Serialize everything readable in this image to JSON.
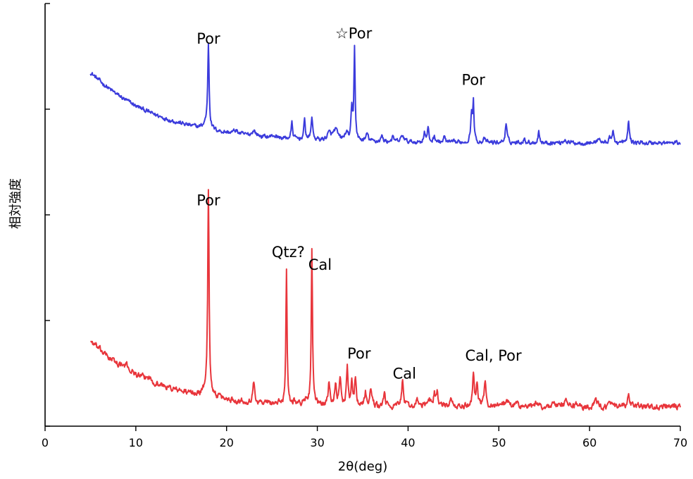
{
  "chart_data": {
    "type": "line",
    "title": "",
    "xlabel": "2θ(deg)",
    "ylabel": "相対強度",
    "xlim": [
      0,
      70
    ],
    "xticks": [
      0,
      10,
      20,
      30,
      40,
      50,
      60,
      70
    ],
    "ylim": [
      0,
      400
    ],
    "y_tick_labels_shown": false,
    "grid": false,
    "legend": "none",
    "series": [
      {
        "color": "#3b3bdc",
        "baseline": 268,
        "background": {
          "start": 5,
          "amplitude": 67,
          "decay": 7.8
        },
        "noise": 1.6,
        "peaks": [
          [
            18.0,
            77,
            0.09
          ],
          [
            17.8,
            6,
            0.35
          ],
          [
            21.0,
            3,
            0.3
          ],
          [
            23.0,
            5,
            0.25
          ],
          [
            25.2,
            2,
            0.3
          ],
          [
            27.2,
            15,
            0.1
          ],
          [
            28.6,
            18,
            0.1
          ],
          [
            29.4,
            22,
            0.1
          ],
          [
            31.3,
            6,
            0.25
          ],
          [
            32.0,
            10,
            0.3
          ],
          [
            33.2,
            7,
            0.2
          ],
          [
            33.8,
            28,
            0.1
          ],
          [
            34.1,
            88,
            0.08
          ],
          [
            35.5,
            7,
            0.15
          ],
          [
            37.1,
            5,
            0.15
          ],
          [
            38.3,
            4,
            0.15
          ],
          [
            39.4,
            6,
            0.2
          ],
          [
            41.8,
            10,
            0.1
          ],
          [
            42.2,
            13,
            0.1
          ],
          [
            42.9,
            6,
            0.12
          ],
          [
            44.0,
            5,
            0.12
          ],
          [
            47.0,
            26,
            0.12
          ],
          [
            47.2,
            34,
            0.08
          ],
          [
            48.4,
            3,
            0.15
          ],
          [
            50.8,
            17,
            0.12
          ],
          [
            52.8,
            3,
            0.2
          ],
          [
            54.4,
            11,
            0.1
          ],
          [
            57.3,
            3,
            0.2
          ],
          [
            61.0,
            5,
            0.15
          ],
          [
            62.2,
            6,
            0.1
          ],
          [
            62.6,
            11,
            0.1
          ],
          [
            64.3,
            21,
            0.1
          ]
        ]
      },
      {
        "color": "#e8353b",
        "baseline": 18,
        "background": {
          "start": 5,
          "amplitude": 63,
          "decay": 7.0
        },
        "noise": 2.2,
        "peaks": [
          [
            9.0,
            4,
            0.3
          ],
          [
            11.4,
            3,
            0.3
          ],
          [
            18.0,
            188,
            0.09
          ],
          [
            17.8,
            8,
            0.35
          ],
          [
            23.0,
            18,
            0.12
          ],
          [
            26.6,
            128,
            0.08
          ],
          [
            27.5,
            3,
            0.2
          ],
          [
            29.4,
            148,
            0.08
          ],
          [
            28.8,
            6,
            0.2
          ],
          [
            31.3,
            22,
            0.12
          ],
          [
            32.0,
            20,
            0.12
          ],
          [
            32.5,
            26,
            0.12
          ],
          [
            33.3,
            38,
            0.1
          ],
          [
            33.8,
            25,
            0.1
          ],
          [
            34.2,
            28,
            0.1
          ],
          [
            35.3,
            13,
            0.12
          ],
          [
            35.9,
            17,
            0.12
          ],
          [
            37.4,
            14,
            0.1
          ],
          [
            39.4,
            26,
            0.12
          ],
          [
            41.0,
            5,
            0.2
          ],
          [
            42.3,
            7,
            0.2
          ],
          [
            42.9,
            12,
            0.12
          ],
          [
            43.2,
            13,
            0.12
          ],
          [
            44.7,
            6,
            0.15
          ],
          [
            47.2,
            30,
            0.12
          ],
          [
            47.6,
            20,
            0.12
          ],
          [
            48.5,
            26,
            0.12
          ],
          [
            50.2,
            5,
            0.2
          ],
          [
            50.9,
            6,
            0.2
          ],
          [
            52.0,
            4,
            0.2
          ],
          [
            54.2,
            4,
            0.2
          ],
          [
            56.0,
            4,
            0.2
          ],
          [
            57.4,
            6,
            0.2
          ],
          [
            58.5,
            3,
            0.2
          ],
          [
            60.7,
            6,
            0.2
          ],
          [
            62.3,
            3,
            0.2
          ],
          [
            64.3,
            10,
            0.15
          ],
          [
            65.6,
            3,
            0.2
          ]
        ]
      }
    ],
    "annotations": [
      {
        "text": "Por",
        "x": 18.0,
        "y": 362
      },
      {
        "text": "☆Por",
        "x": 34.0,
        "y": 367
      },
      {
        "text": "Por",
        "x": 47.2,
        "y": 323
      },
      {
        "text": "Por",
        "x": 18.0,
        "y": 209
      },
      {
        "text": "Qtz?",
        "x": 26.8,
        "y": 160
      },
      {
        "text": "Cal",
        "x": 30.3,
        "y": 148
      },
      {
        "text": "Por",
        "x": 34.6,
        "y": 64
      },
      {
        "text": "Cal",
        "x": 39.6,
        "y": 45
      },
      {
        "text": "Cal, Por",
        "x": 49.4,
        "y": 62
      }
    ]
  }
}
